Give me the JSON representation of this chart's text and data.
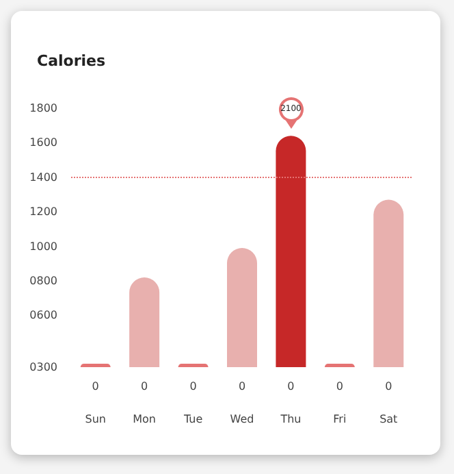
{
  "chart_data": {
    "type": "bar",
    "title": "Calories",
    "categories": [
      "Sun",
      "Mon",
      "Tue",
      "Wed",
      "Thu",
      "Fri",
      "Sat"
    ],
    "values": [
      320,
      820,
      320,
      990,
      1640,
      320,
      1270
    ],
    "colors": [
      "#e57373",
      "#e8b0ae",
      "#e57373",
      "#e8b0ae",
      "#c62828",
      "#e57373",
      "#e8b0ae"
    ],
    "ylim": [
      300,
      1800
    ],
    "yticks": [
      {
        "value": 300,
        "label": "0300"
      },
      {
        "value": 600,
        "label": "0600"
      },
      {
        "value": 800,
        "label": "0800"
      },
      1000,
      1200,
      1400,
      1600,
      1800
    ],
    "ref_lines": [
      {
        "axis": "y",
        "value": 1400,
        "color": "#e57373",
        "line_style": "dotted"
      }
    ],
    "annotations": [
      {
        "text": "2100",
        "x": "Thu",
        "y": 1640
      },
      "0",
      "0",
      "0",
      "0",
      "0",
      "0",
      "0"
    ],
    "grid": false
  }
}
